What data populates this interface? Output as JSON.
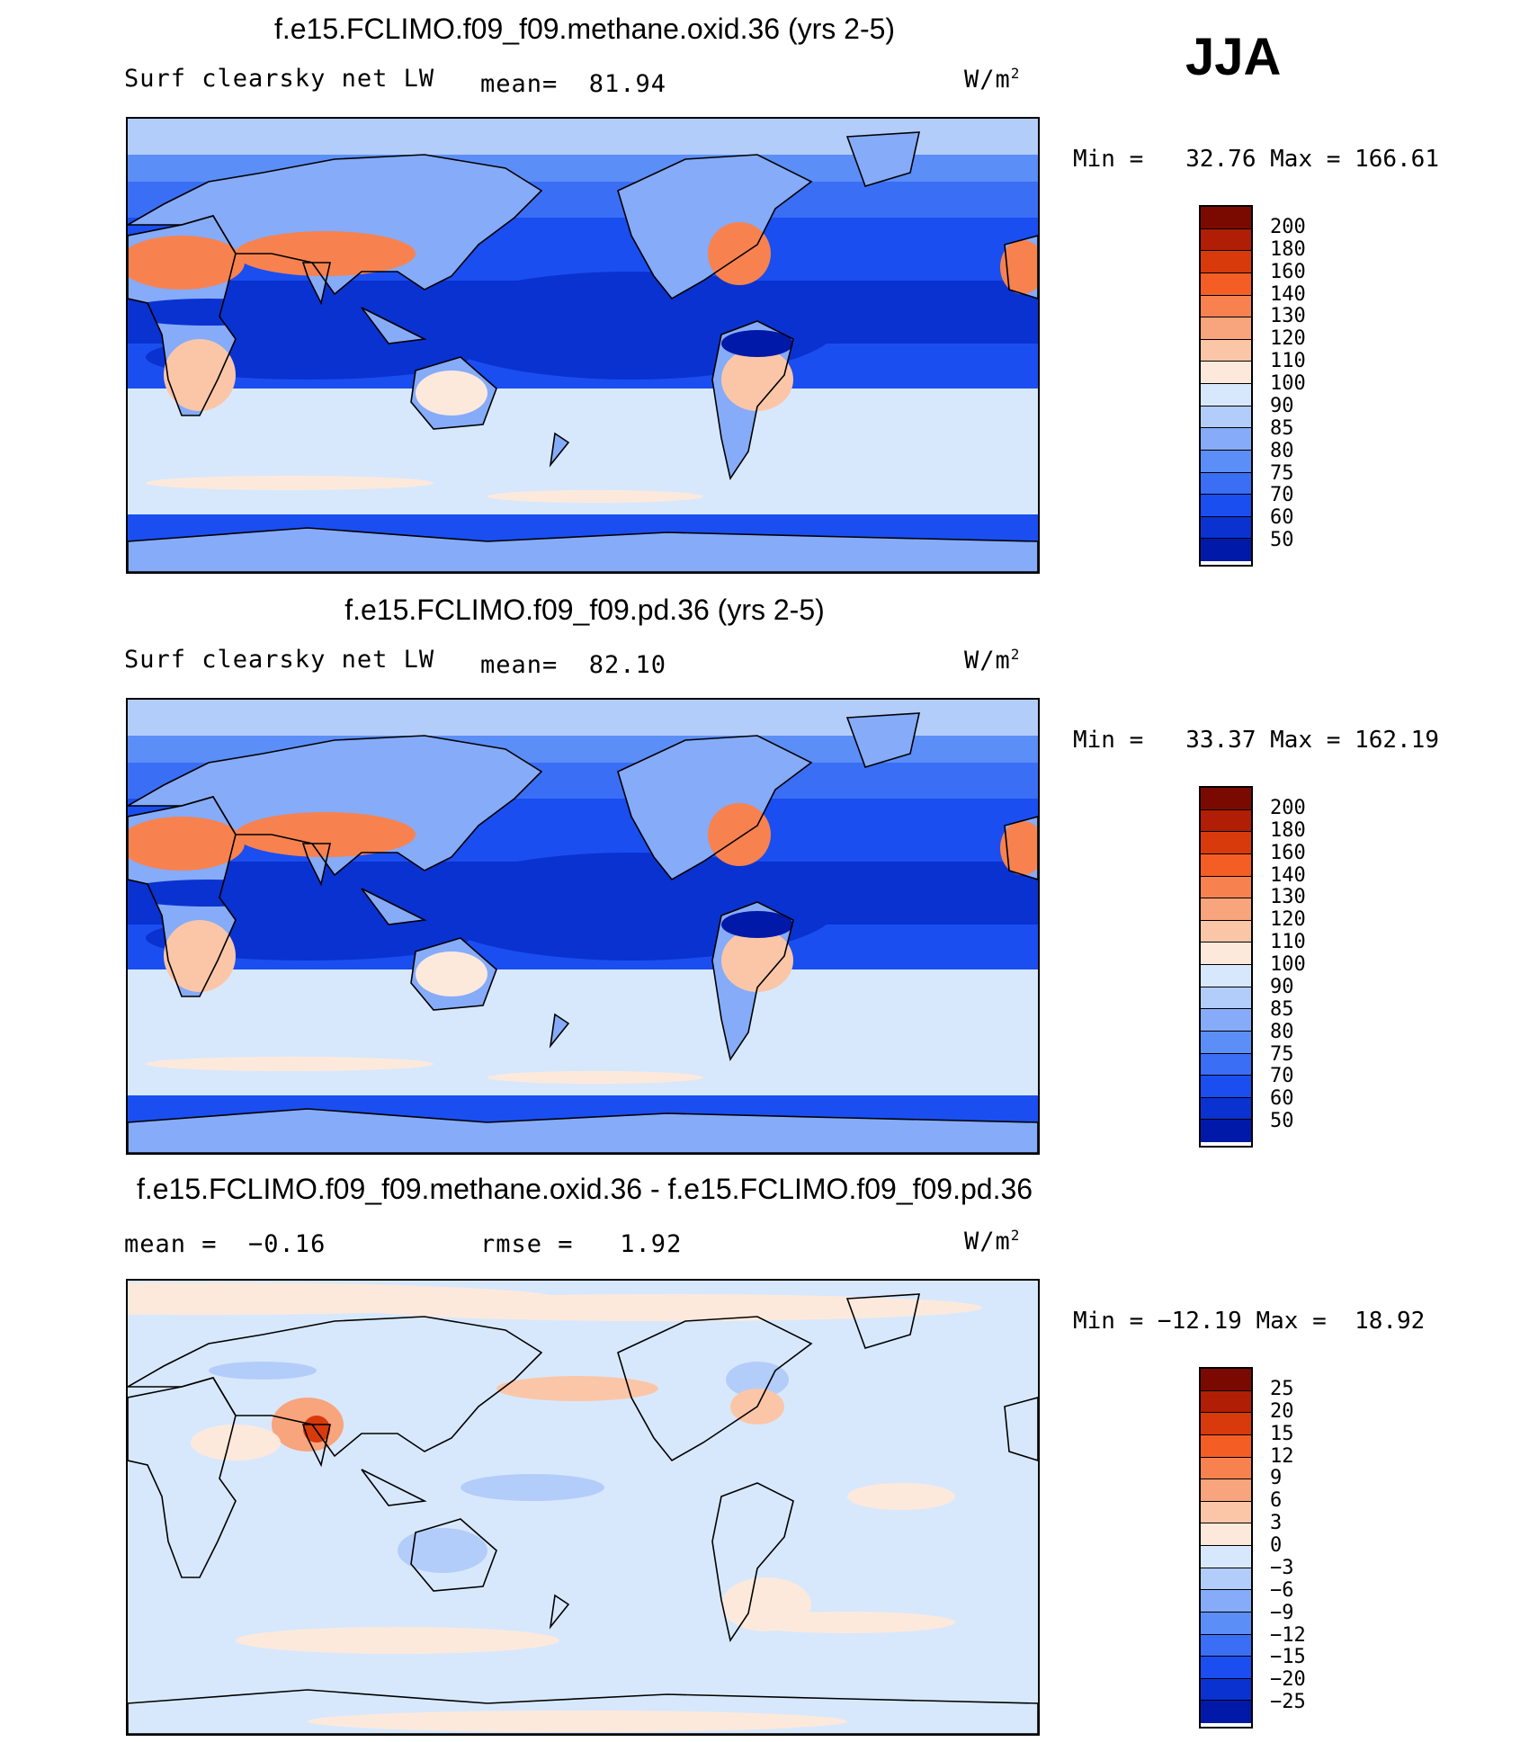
{
  "season": "JJA",
  "colors": {
    "scale": [
      "#000a78",
      "#0019a8",
      "#0a32d0",
      "#1a4ef0",
      "#3a6ef5",
      "#5c8ef7",
      "#86abf8",
      "#b3cdfa",
      "#d8e8fc",
      "#fde9dc",
      "#fbc6a8",
      "#f8a47c",
      "#f7824f",
      "#f45e25",
      "#d83a0c",
      "#b01e05",
      "#7a0a00"
    ],
    "coast": "#000000"
  },
  "panels": [
    {
      "title": "f.e15.FCLIMO.f09_f09.methane.oxid.36 (yrs 2-5)",
      "left_text": "Surf clearsky net LW",
      "mid_text": "mean=  81.94",
      "units_base": "W/m",
      "units_exp": "2",
      "minmax": "Min =   32.76 Max = 166.61",
      "levels": [
        "200",
        "180",
        "160",
        "140",
        "130",
        "120",
        "110",
        "100",
        "90",
        "85",
        "80",
        "75",
        "70",
        "60",
        "50"
      ],
      "kind": "abs"
    },
    {
      "title": "f.e15.FCLIMO.f09_f09.pd.36 (yrs 2-5)",
      "left_text": "Surf clearsky net LW",
      "mid_text": "mean=  82.10",
      "units_base": "W/m",
      "units_exp": "2",
      "minmax": "Min =   33.37 Max = 162.19",
      "levels": [
        "200",
        "180",
        "160",
        "140",
        "130",
        "120",
        "110",
        "100",
        "90",
        "85",
        "80",
        "75",
        "70",
        "60",
        "50"
      ],
      "kind": "abs"
    },
    {
      "title": "f.e15.FCLIMO.f09_f09.methane.oxid.36 - f.e15.FCLIMO.f09_f09.pd.36",
      "left_text": "mean =  −0.16",
      "mid_text": "rmse =   1.92",
      "units_base": "W/m",
      "units_exp": "2",
      "minmax": "Min = −12.19 Max =  18.92",
      "levels": [
        "25",
        "20",
        "15",
        "12",
        "9",
        "6",
        "3",
        "0",
        "−3",
        "−6",
        "−9",
        "−12",
        "−15",
        "−20",
        "−25"
      ],
      "kind": "diff"
    }
  ]
}
